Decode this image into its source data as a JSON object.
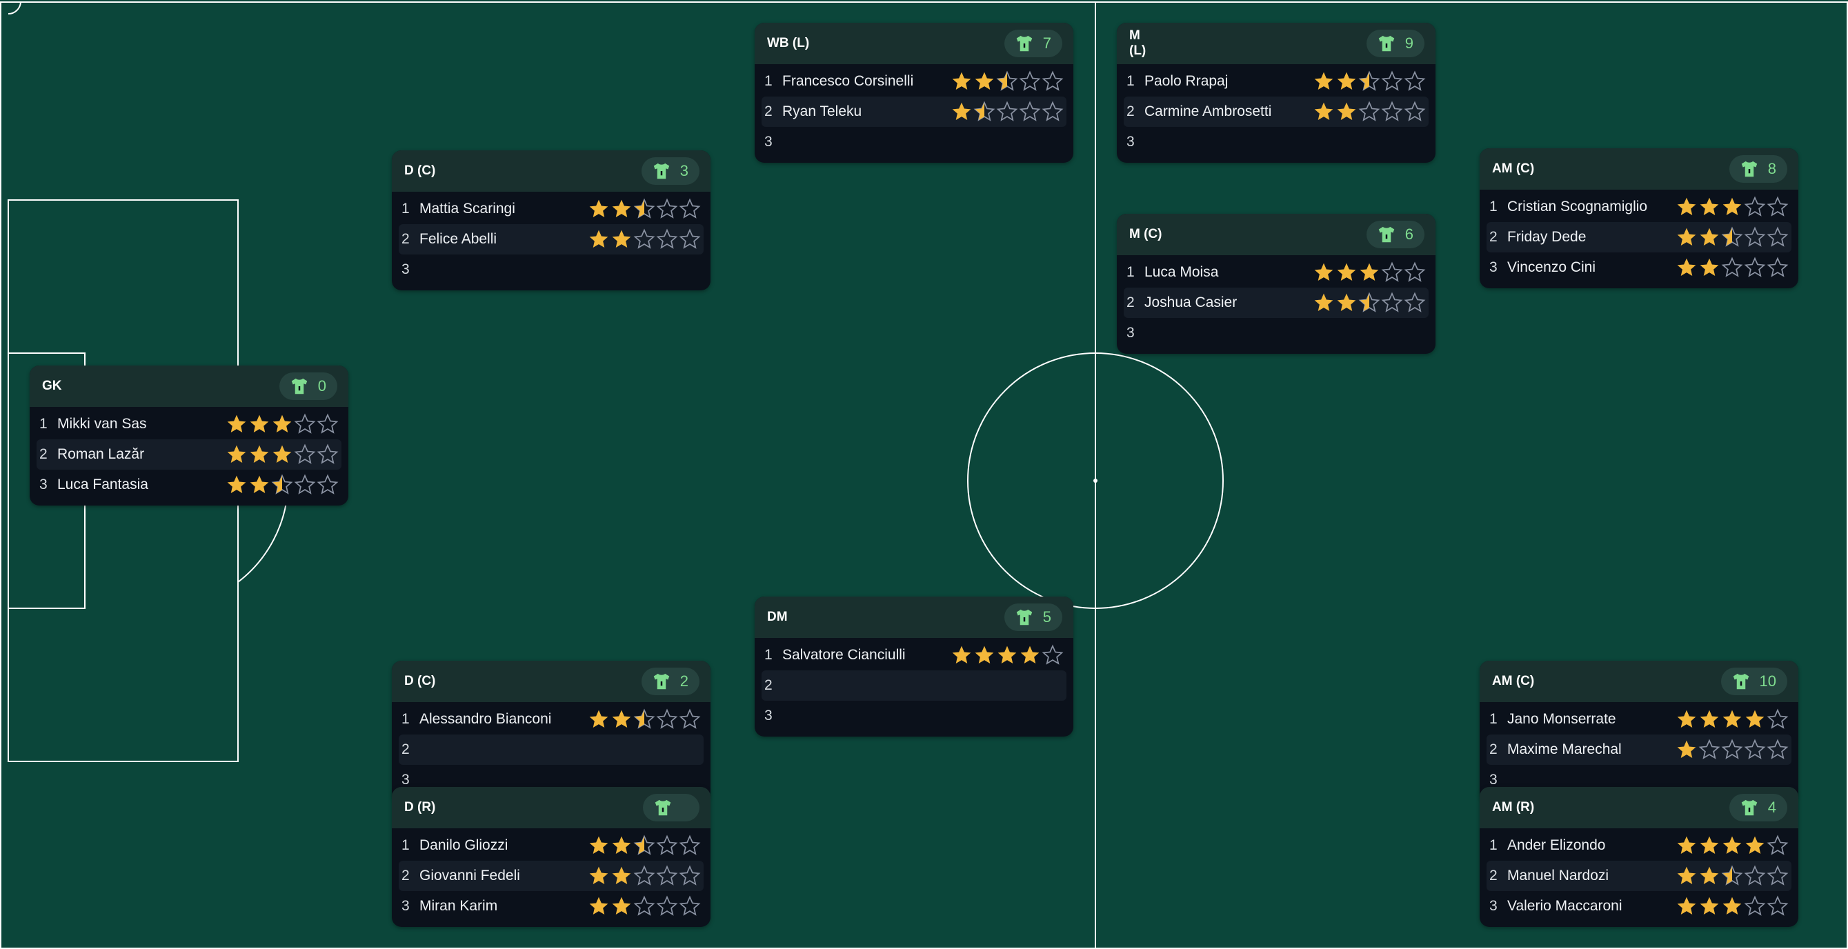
{
  "colors": {
    "pitch": "#0b463a",
    "card": "#0b111b",
    "card_header": "#19302e",
    "star_filled": "#f3b73a",
    "star_empty_outline": "#8b93a3",
    "shirt_icon": "#7fdc8f"
  },
  "cards": [
    {
      "label": "GK",
      "number": "0",
      "players": [
        {
          "rank": "1",
          "name": "Mikki van Sas",
          "rating": 3
        },
        {
          "rank": "2",
          "name": "Roman Lazăr",
          "rating": 3
        },
        {
          "rank": "3",
          "name": "Luca Fantasia",
          "rating": 2.5
        }
      ]
    },
    {
      "label": "D (C)",
      "number": "3",
      "players": [
        {
          "rank": "1",
          "name": "Mattia Scaringi",
          "rating": 2.5
        },
        {
          "rank": "2",
          "name": "Felice Abelli",
          "rating": 2
        },
        {
          "rank": "3",
          "name": "",
          "rating": null
        }
      ]
    },
    {
      "label": "D (C)",
      "number": "2",
      "players": [
        {
          "rank": "1",
          "name": "Alessandro Bianconi",
          "rating": 2.5
        },
        {
          "rank": "2",
          "name": "",
          "rating": null
        },
        {
          "rank": "3",
          "name": "",
          "rating": null
        }
      ]
    },
    {
      "label": "D (R)",
      "number": "",
      "players": [
        {
          "rank": "1",
          "name": "Danilo Gliozzi",
          "rating": 2.5
        },
        {
          "rank": "2",
          "name": "Giovanni Fedeli",
          "rating": 2
        },
        {
          "rank": "3",
          "name": "Miran Karim",
          "rating": 2
        }
      ]
    },
    {
      "label": "WB (L)",
      "number": "7",
      "players": [
        {
          "rank": "1",
          "name": "Francesco Corsinelli",
          "rating": 2.5
        },
        {
          "rank": "2",
          "name": "Ryan Teleku",
          "rating": 1.5
        },
        {
          "rank": "3",
          "name": "",
          "rating": null
        }
      ]
    },
    {
      "label": "DM",
      "number": "5",
      "players": [
        {
          "rank": "1",
          "name": "Salvatore Cianciulli",
          "rating": 4
        },
        {
          "rank": "2",
          "name": "",
          "rating": null
        },
        {
          "rank": "3",
          "name": "",
          "rating": null
        }
      ]
    },
    {
      "label": "M\n(L)",
      "number": "9",
      "players": [
        {
          "rank": "1",
          "name": "Paolo Rrapaj",
          "rating": 2.5
        },
        {
          "rank": "2",
          "name": "Carmine Ambrosetti",
          "rating": 2
        },
        {
          "rank": "3",
          "name": "",
          "rating": null
        }
      ]
    },
    {
      "label": "M (C)",
      "number": "6",
      "players": [
        {
          "rank": "1",
          "name": "Luca Moisa",
          "rating": 3
        },
        {
          "rank": "2",
          "name": "Joshua Casier",
          "rating": 2.5
        },
        {
          "rank": "3",
          "name": "",
          "rating": null
        }
      ]
    },
    {
      "label": "AM (C)",
      "number": "8",
      "players": [
        {
          "rank": "1",
          "name": "Cristian Scognamiglio",
          "rating": 3
        },
        {
          "rank": "2",
          "name": "Friday Dede",
          "rating": 2.5
        },
        {
          "rank": "3",
          "name": "Vincenzo Cini",
          "rating": 2
        }
      ]
    },
    {
      "label": "AM (C)",
      "number": "10",
      "players": [
        {
          "rank": "1",
          "name": "Jano Monserrate",
          "rating": 4
        },
        {
          "rank": "2",
          "name": "Maxime Marechal",
          "rating": 1
        },
        {
          "rank": "3",
          "name": "",
          "rating": null
        }
      ]
    },
    {
      "label": "AM (R)",
      "number": "4",
      "players": [
        {
          "rank": "1",
          "name": "Ander Elizondo",
          "rating": 4
        },
        {
          "rank": "2",
          "name": "Manuel Nardozi",
          "rating": 2.5
        },
        {
          "rank": "3",
          "name": "Valerio Maccaroni",
          "rating": 3
        }
      ]
    }
  ]
}
